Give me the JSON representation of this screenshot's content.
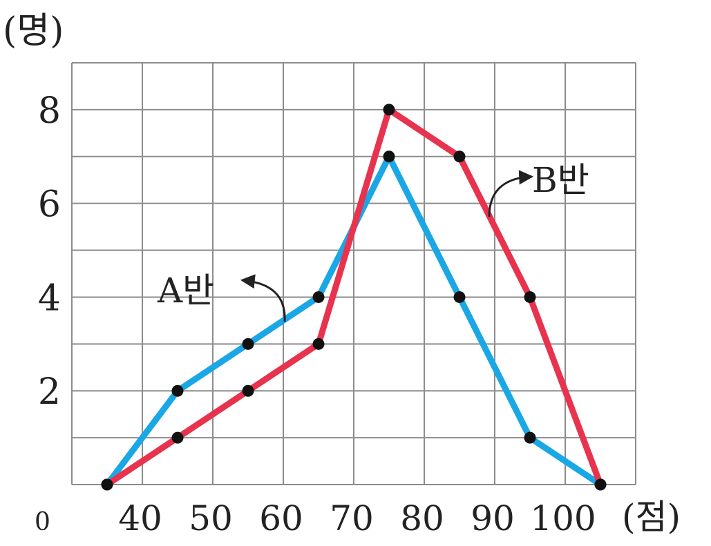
{
  "chart_data": {
    "type": "line",
    "ylabel": "(명)",
    "xlabel": "(점)",
    "origin_label": "0",
    "x": [
      35,
      45,
      55,
      65,
      75,
      85,
      95,
      105
    ],
    "x_ticks": [
      40,
      50,
      60,
      70,
      80,
      90,
      100
    ],
    "y_ticks": [
      2,
      4,
      6,
      8
    ],
    "xlim": [
      30,
      110
    ],
    "ylim": [
      0,
      9
    ],
    "grid": true,
    "series": [
      {
        "name": "A반",
        "color": "#1aa7e6",
        "values": [
          0,
          2,
          3,
          4,
          7,
          4,
          1,
          0
        ]
      },
      {
        "name": "B반",
        "color": "#e8334f",
        "values": [
          0,
          1,
          2,
          3,
          8,
          7,
          4,
          0
        ]
      }
    ]
  }
}
